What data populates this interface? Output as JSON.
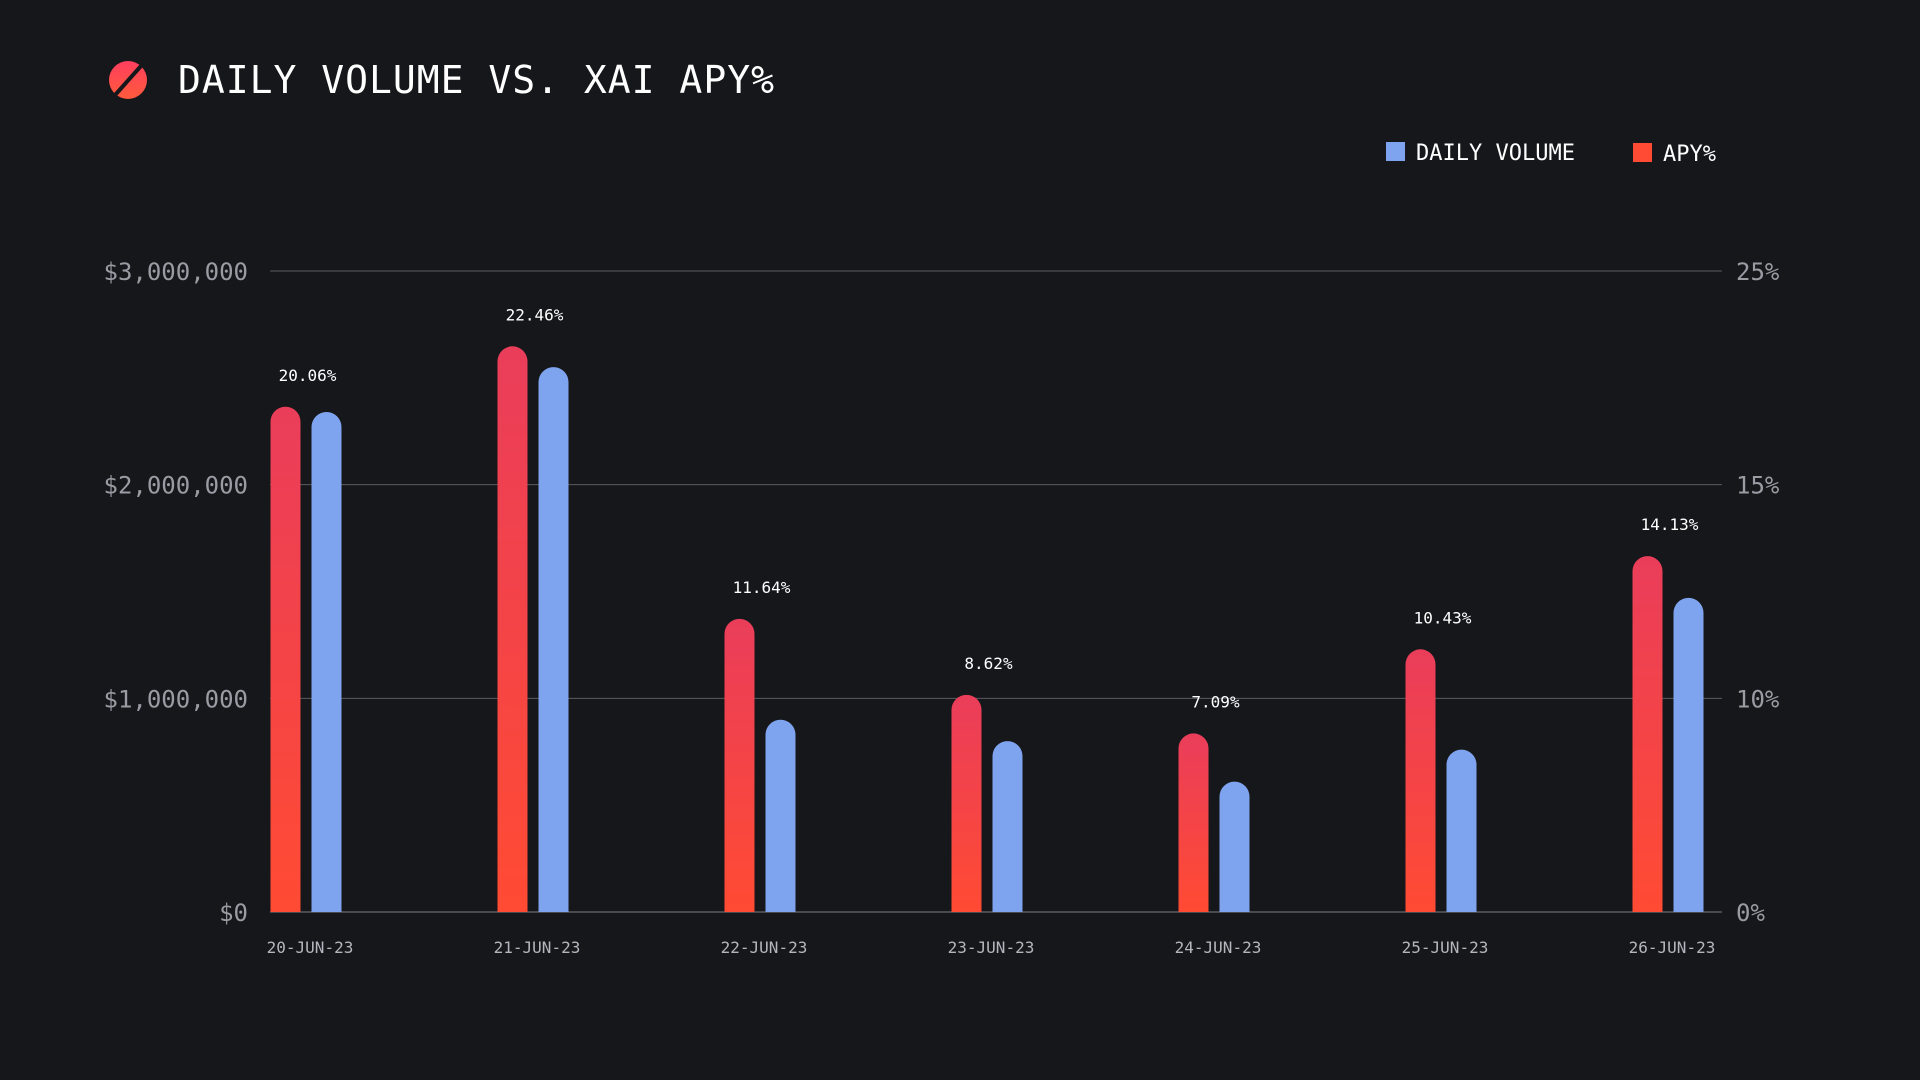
{
  "title": "DAILY VOLUME VS. XAI APY%",
  "logo_icon": "slashed-circle-icon",
  "colors": {
    "background": "#16171b",
    "volume": "#7fa4ef",
    "apy_top": "#ea3d5a",
    "apy_bottom": "#ff4b33",
    "grid": "#5a5b61",
    "logo_top": "#ff3f5e",
    "logo_bottom": "#ff5a3c"
  },
  "legend": [
    {
      "label": "DAILY VOLUME",
      "color": "#7fa4ef"
    },
    {
      "label": "APY%",
      "color": "#ff4b33"
    }
  ],
  "chart_data": {
    "type": "bar",
    "categories": [
      "20-JUN-23",
      "21-JUN-23",
      "22-JUN-23",
      "23-JUN-23",
      "24-JUN-23",
      "25-JUN-23",
      "26-JUN-23"
    ],
    "series": [
      {
        "name": "DAILY VOLUME",
        "axis": "left",
        "values": [
          2340000,
          2550000,
          900000,
          800000,
          610000,
          760000,
          1470000
        ]
      },
      {
        "name": "APY%",
        "axis": "right",
        "values": [
          20.06,
          22.46,
          11.64,
          8.62,
          7.09,
          10.43,
          14.13
        ],
        "data_labels": [
          "20.06%",
          "22.46%",
          "11.64%",
          "8.62%",
          "7.09%",
          "10.43%",
          "14.13%"
        ]
      }
    ],
    "left_axis": {
      "ylim": [
        0,
        3000000
      ],
      "ticks": [
        0,
        1000000,
        2000000,
        3000000
      ],
      "tick_labels": [
        "$0",
        "$1,000,000",
        "$2,000,000",
        "$3,000,000"
      ]
    },
    "right_axis": {
      "tick_labels": [
        "0%",
        "10%",
        "15%",
        "25%"
      ]
    },
    "grid": true,
    "legend_position": "top-right"
  }
}
